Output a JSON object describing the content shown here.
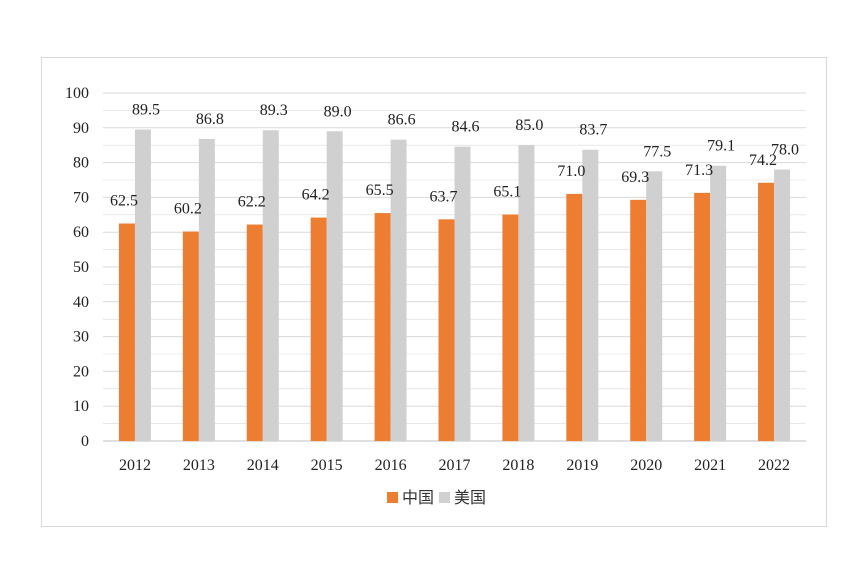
{
  "colors": {
    "china": "#ED7D31",
    "usa": "#D0D0D0",
    "grid": "#D9D9D9",
    "axis": "#BFBFBF",
    "frame": "#D9D9D9"
  },
  "chart_data": {
    "type": "bar",
    "title": "",
    "xlabel": "",
    "ylabel": "",
    "categories": [
      "2012",
      "2013",
      "2014",
      "2015",
      "2016",
      "2017",
      "2018",
      "2019",
      "2020",
      "2021",
      "2022"
    ],
    "series": [
      {
        "name": "中国",
        "color": "#ED7D31",
        "values": [
          62.5,
          60.2,
          62.2,
          64.2,
          65.5,
          63.7,
          65.1,
          71.0,
          69.3,
          71.3,
          74.2
        ]
      },
      {
        "name": "美国",
        "color": "#D0D0D0",
        "values": [
          89.5,
          86.8,
          89.3,
          89.0,
          86.6,
          84.6,
          85.0,
          83.7,
          77.5,
          79.1,
          78.0
        ]
      }
    ],
    "ylim": [
      0,
      100
    ],
    "yticks": [
      0,
      10,
      20,
      30,
      40,
      50,
      60,
      70,
      80,
      90,
      100
    ],
    "grid": true,
    "legend_position": "bottom-center"
  }
}
